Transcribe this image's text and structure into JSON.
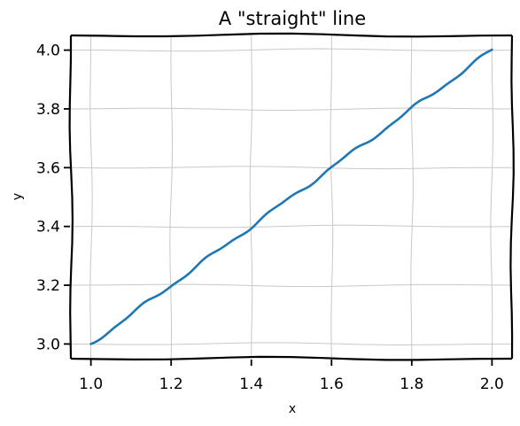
{
  "chart_data": {
    "type": "line",
    "title": "A \"straight\" line",
    "xlabel": "x",
    "ylabel": "y",
    "xlim": [
      0.95,
      2.05
    ],
    "ylim": [
      2.95,
      4.05
    ],
    "xticks": [
      "1.0",
      "1.2",
      "1.4",
      "1.6",
      "1.8",
      "2.0"
    ],
    "yticks": [
      "3.0",
      "3.2",
      "3.4",
      "3.6",
      "3.8",
      "4.0"
    ],
    "grid": true,
    "series": [
      {
        "color": "#1f77b4",
        "x": [
          1.0,
          1.1,
          1.2,
          1.3,
          1.4,
          1.5,
          1.6,
          1.7,
          1.8,
          1.9,
          2.0
        ],
        "y": [
          3.0,
          3.1,
          3.2,
          3.3,
          3.4,
          3.5,
          3.6,
          3.7,
          3.8,
          3.9,
          4.0
        ]
      }
    ]
  }
}
